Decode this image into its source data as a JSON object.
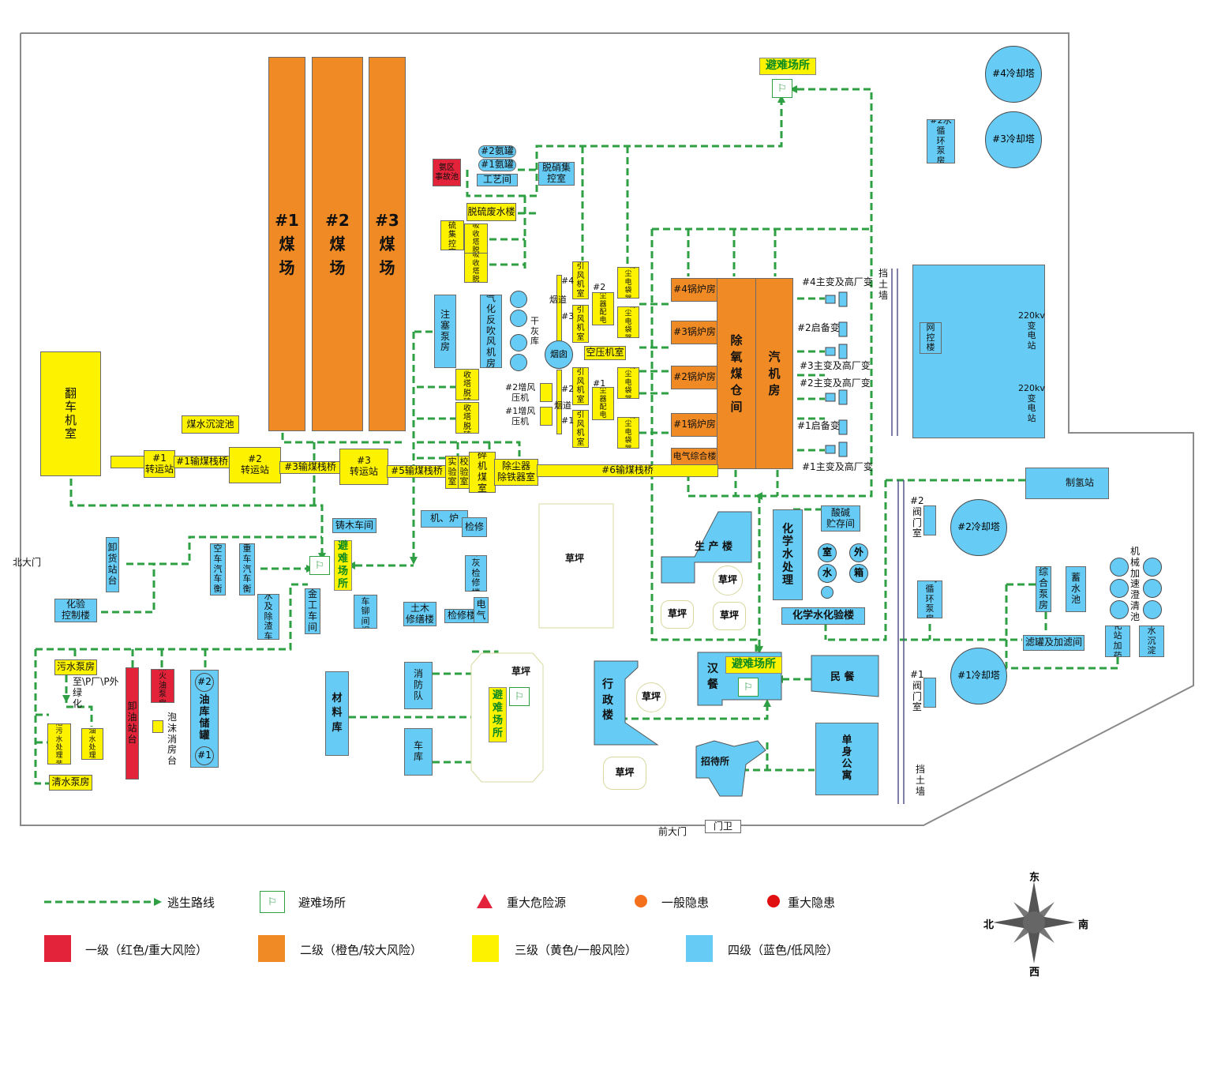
{
  "colors": {
    "red": "#e3233a",
    "orange": "#f08a24",
    "yellow": "#fdf200",
    "blue": "#66ccf5",
    "route": "#2ea043"
  },
  "gates": {
    "north": "北大门",
    "front": "前大门",
    "guard": "门卫"
  },
  "yards": {
    "y1": "#1\n煤\n场",
    "y2": "#2\n煤\n场",
    "y3": "#3\n煤\n场"
  },
  "orange_areas": {
    "b4": "#4锅炉房",
    "b3": "#3锅炉房",
    "b2": "#2锅炉房",
    "b1": "#1锅炉房",
    "elec": "电气综合楼",
    "deaer": "除\n氧\n煤\n仓\n间",
    "turbine": "汽\n机\n房"
  },
  "yellow_areas": {
    "fanche": "翻\n车\n机\n室",
    "coal_pool": "煤水沉淀池",
    "ts1": "#1\n转运站",
    "bridge1": "#1输煤栈桥",
    "ts2": "#2\n转运站",
    "bridge3": "#3输煤栈桥",
    "ts3": "#3\n转运站",
    "bridge5": "#5输煤栈桥",
    "lab_room": "实\n验\n室",
    "calib": "校\n验\n室",
    "crusher": "碎\n机\n煤\n室",
    "dust_iron": "除尘器\n除铁器室",
    "bridge6": "#6输煤栈桥",
    "desulf_water": "脱硫废水楼",
    "desulf_ctrl": "脱\n硫\n集\n控\n室",
    "abs4": "#4\n吸\n收\n塔\n脱\n硫",
    "abs3": "#3\n吸\n收\n塔\n脱\n硫",
    "abs2": "#2吸\n收\n塔\n脱\n硫",
    "abs1": "#1吸\n收\n塔\n脱\n硫",
    "fan4": "引\n风\n机\n室",
    "fan3": "引\n风\n机\n室",
    "fan2": "引\n风\n机\n室",
    "fan1": "引\n风\n机\n室",
    "dustelec2": "除\n尘\n器\n配\n电\n室",
    "dustelec1": "除\n尘\n器\n配\n电\n室",
    "bag4": "#4除\n尘\n电\n袋\n器",
    "bag3": "#3除\n尘\n电\n袋\n器",
    "bag2": "#2除\n尘\n电\n袋\n器",
    "bag1": "#1除\n尘\n电\n袋\n器",
    "aircomp": "空压机室",
    "pollpump": "污水泵房",
    "pollrt": "生\n活\n污\n水\n处\n理\n装\n置",
    "oilwater": "含\n油\n水\n处\n理\n间",
    "cleanpump": "清水泵房",
    "foam": ""
  },
  "red_areas": {
    "ammonia_pool": "氨区\n事故池",
    "oil_unload": "卸\n油\n站\n台",
    "ignite": "点\n火\n油\n泵\n房"
  },
  "blue_areas": {
    "amm2": "#2氨罐",
    "amm1": "#1氨罐",
    "process": "工艺间",
    "denox": "脱硝集\n控室",
    "inject_pump": "注\n塞\n泵\n房",
    "gasfan": "气\n化\n反\n吹\n风\n机\n房",
    "unload_dock": "卸\n货\n站\n台",
    "chemlab": "化验\n控制楼",
    "emptyscale": "空\n车\n汽\n车\n衡",
    "heavyscale": "重\n车\n汽\n车\n衡",
    "chemdesl": "化\n水\n及\n除\n渣\n车\n库",
    "metal": "金\n工\n车\n间",
    "casting": "铸木车间",
    "forging": "锻\n车\n铆\n间\n焊",
    "machine": "机、炉",
    "repair1": "检修",
    "ashrep": "除\n灰\n检\n修\n楼",
    "civil": "土木\n修缮楼",
    "elecrep": "检修楼",
    "elecrep2": "电\n气",
    "fire": "消\n防\n队",
    "garage": "车\n库",
    "material": "材\n料\n库",
    "prod": "生 产 楼",
    "chemwater": "化\n学\n水\n处\n理",
    "chemlab2": "化学水化验楼",
    "acid": "酸碱\n贮存间",
    "admin": "行\n政\n楼",
    "hancan": "汉\n餐",
    "mincan": "民 餐",
    "guest": "招待所",
    "dorm": "单\n身\n公\n寓",
    "oiltank": "油\n库\n储\n罐",
    "cw2": "#2水\n循\n环\n泵\n房",
    "cw1": "#1水\n循\n环\n泵\n房",
    "comppump": "综\n合\n泵\n房",
    "storage": "蓄\n水\n池",
    "filter": "滤罐及加滤间",
    "dosing": "净\n化\n站\n加\n药\n间",
    "sludge": "泥\n水\n沉\n淀\n池",
    "hydrogen": "制氢站",
    "netctrl": "网\n控\n楼",
    "valve2": "",
    "valve1": ""
  },
  "circles": {
    "ct4": "#4冷却塔",
    "ct3": "#3冷却塔",
    "ct2": "#2冷却塔",
    "ct1": "#1冷却塔",
    "chimney": "烟囱",
    "room": "室",
    "water": "水",
    "outside": "外",
    "box": "箱",
    "oil2": "#2",
    "oil1": "#1"
  },
  "labels": {
    "flue_up": "烟道",
    "flue_dn": "烟道",
    "dry_ash": "干\n灰\n库",
    "boost2": "#2增风\n压机",
    "boost1": "#1增风\n压机",
    "n4": "#4",
    "n3": "#3",
    "n2": "#2",
    "n1": "#1",
    "d2": "#2",
    "d1": "#1",
    "tr4": "#4主变及高厂变",
    "sb2": "#2启备变",
    "tr3": "#3主变及高厂变",
    "tr2": "#2主变及高厂变",
    "sb1": "#1启备变",
    "tr1": "#1主变及高厂变",
    "wall1": "挡\n土\n墙",
    "wall2": "挡\n土\n墙",
    "sub1": "220kv\n变\n电\n站",
    "sub2": "220kv\n变\n电\n站",
    "valve2_lab": "#2\n阀\n门\n室",
    "valve1_lab": "#1\n阀\n门\n室",
    "mech": "机\n械\n加\n速\n澄\n清\n池",
    "outside_green": "至\\P厂\\P外\n绿\n化",
    "foam_lab": "泡\n沫\n消\n房\n台",
    "lawn": "草坪"
  },
  "shelters": {
    "s_top": "避难场所",
    "s_left": "避\n难\n场\n所",
    "s_mid": "避\n难\n场\n所",
    "s_right": "避难场所"
  },
  "legend": {
    "route": "逃生路线",
    "shelter": "避难场所",
    "major_hazard": "重大危险源",
    "general_danger": "一般隐患",
    "major_danger": "重大隐患",
    "level1": "一级（红色/重大风险）",
    "level2": "二级（橙色/较大风险）",
    "level3": "三级（黄色/一般风险）",
    "level4": "四级（蓝色/低风险）"
  },
  "compass": {
    "n": "东",
    "s": "西",
    "w": "北",
    "e": "南"
  },
  "icons": {
    "shelter": "shelter-people-icon",
    "hazard": "warning-triangle-icon"
  }
}
